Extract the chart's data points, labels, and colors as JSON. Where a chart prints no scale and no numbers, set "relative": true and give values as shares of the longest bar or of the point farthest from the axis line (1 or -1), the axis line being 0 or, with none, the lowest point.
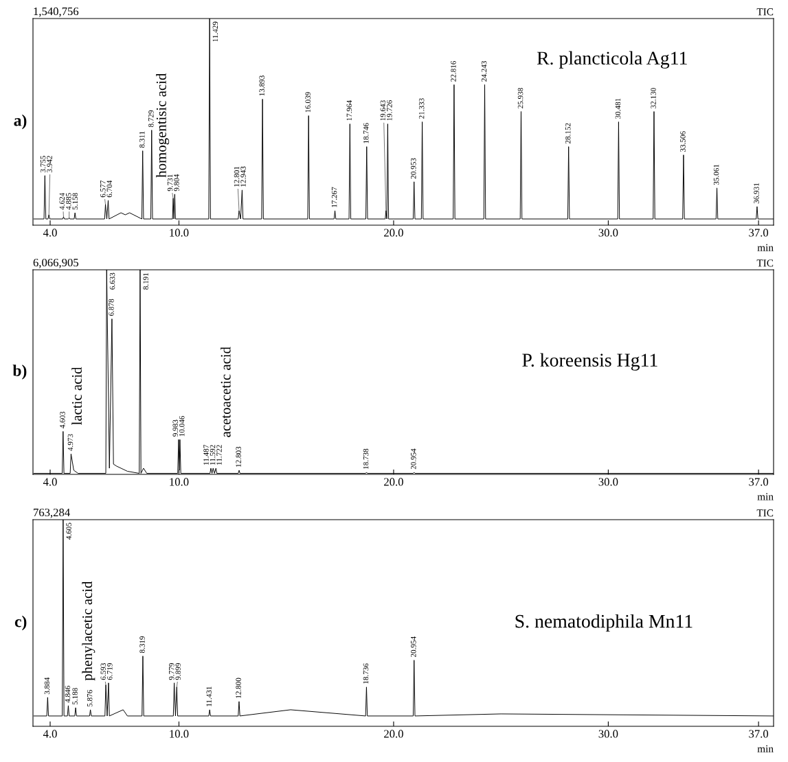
{
  "chart_data": [
    {
      "type": "line",
      "title": "a)",
      "xlabel": "min",
      "relative": true,
      "xlim": [
        3.2,
        37.7
      ],
      "xticks": [
        {
          "value": 4,
          "label": "4.0"
        },
        {
          "value": 10,
          "label": "10.0"
        },
        {
          "value": 20,
          "label": "20.0"
        },
        {
          "value": 30,
          "label": "30.0"
        },
        {
          "value": 37,
          "label": "37.0"
        }
      ],
      "series": [
        {
          "color": "#000000",
          "x": [
            3.24,
            3.715,
            3.755,
            3.8,
            3.902,
            3.942,
            3.982,
            4.584,
            4.624,
            4.664,
            4.845,
            4.885,
            4.925,
            5.118,
            5.158,
            5.198,
            6.537,
            6.577,
            6.64,
            6.704,
            6.744,
            7.3,
            7.5,
            7.7,
            8.271,
            8.311,
            8.351,
            8.689,
            8.729,
            8.769,
            9.7,
            9.731,
            9.767,
            9.804,
            9.84,
            11.389,
            11.429,
            11.469,
            12.761,
            12.801,
            12.872,
            12.943,
            12.983,
            13.853,
            13.893,
            13.933,
            15.999,
            16.039,
            16.079,
            17.227,
            17.267,
            17.307,
            17.924,
            17.964,
            18.004,
            18.706,
            18.746,
            18.786,
            19.61,
            19.643,
            19.685,
            19.726,
            19.766,
            20.913,
            20.953,
            20.993,
            21.293,
            21.333,
            21.373,
            22.776,
            22.816,
            22.856,
            24.203,
            24.243,
            24.283,
            25.898,
            25.938,
            25.978,
            28.112,
            28.152,
            28.192,
            30.441,
            30.481,
            30.521,
            32.09,
            32.13,
            32.17,
            33.466,
            33.506,
            33.546,
            35.021,
            35.061,
            35.101,
            36.891,
            36.931,
            36.971,
            37.7
          ],
          "values": [
            0.03,
            0.03,
            0.24,
            0.03,
            0.03,
            0.05,
            0.03,
            0.03,
            0.04,
            0.03,
            0.03,
            0.035,
            0.03,
            0.03,
            0.06,
            0.03,
            0.03,
            0.1,
            0.03,
            0.12,
            0.03,
            0.06,
            0.05,
            0.06,
            0.03,
            0.36,
            0.03,
            0.03,
            0.46,
            0.03,
            0.03,
            0.13,
            0.03,
            0.15,
            0.03,
            0.03,
            1.0,
            0.03,
            0.03,
            0.07,
            0.03,
            0.17,
            0.03,
            0.03,
            0.61,
            0.03,
            0.03,
            0.53,
            0.03,
            0.03,
            0.07,
            0.03,
            0.03,
            0.49,
            0.03,
            0.03,
            0.38,
            0.03,
            0.03,
            0.07,
            0.03,
            0.49,
            0.03,
            0.03,
            0.21,
            0.03,
            0.03,
            0.5,
            0.03,
            0.03,
            0.68,
            0.03,
            0.03,
            0.68,
            0.03,
            0.03,
            0.55,
            0.03,
            0.03,
            0.38,
            0.03,
            0.03,
            0.5,
            0.03,
            0.03,
            0.55,
            0.03,
            0.03,
            0.34,
            0.03,
            0.03,
            0.18,
            0.03,
            0.03,
            0.09,
            0.03,
            0.03
          ]
        }
      ],
      "annotations": [
        "1,540,756",
        "TIC",
        "R. plancticola Ag11",
        {
          "text": "3.755",
          "x": 3.755,
          "y": 0.24
        },
        {
          "text": "3.942",
          "x": 3.942,
          "y": 0.05
        },
        {
          "text": "4.624",
          "x": 4.624,
          "y": 0.04
        },
        {
          "text": "4.885",
          "x": 4.885,
          "y": 0.035
        },
        {
          "text": "5.158",
          "x": 5.158,
          "y": 0.06
        },
        {
          "text": "6.577",
          "x": 6.577,
          "y": 0.1
        },
        {
          "text": "6.704",
          "x": 6.704,
          "y": 0.12
        },
        {
          "text": "8.311",
          "x": 8.311,
          "y": 0.36
        },
        {
          "text": "8.729",
          "x": 8.729,
          "y": 0.46
        },
        {
          "text": "9.731",
          "x": 9.731,
          "y": 0.13
        },
        {
          "text": "9.804",
          "x": 9.804,
          "y": 0.15
        },
        {
          "text": "11.429",
          "x": 11.429,
          "y": 1.0
        },
        {
          "text": "12.801",
          "x": 12.801,
          "y": 0.07
        },
        {
          "text": "12.943",
          "x": 12.943,
          "y": 0.17
        },
        {
          "text": "13.893",
          "x": 13.893,
          "y": 0.61
        },
        {
          "text": "16.039",
          "x": 16.039,
          "y": 0.53
        },
        {
          "text": "17.267",
          "x": 17.267,
          "y": 0.07
        },
        {
          "text": "17.964",
          "x": 17.964,
          "y": 0.49
        },
        {
          "text": "18.746",
          "x": 18.746,
          "y": 0.38
        },
        {
          "text": "19.643",
          "x": 19.643,
          "y": 0.07
        },
        {
          "text": "19.726",
          "x": 19.726,
          "y": 0.49
        },
        {
          "text": "20.953",
          "x": 20.953,
          "y": 0.21
        },
        {
          "text": "21.333",
          "x": 21.333,
          "y": 0.5
        },
        {
          "text": "22.816",
          "x": 22.816,
          "y": 0.68
        },
        {
          "text": "24.243",
          "x": 24.243,
          "y": 0.68
        },
        {
          "text": "25.938",
          "x": 25.938,
          "y": 0.55
        },
        {
          "text": "28.152",
          "x": 28.152,
          "y": 0.38
        },
        {
          "text": "30.481",
          "x": 30.481,
          "y": 0.5
        },
        {
          "text": "32.130",
          "x": 32.13,
          "y": 0.55
        },
        {
          "text": "33.506",
          "x": 33.506,
          "y": 0.34
        },
        {
          "text": "35.061",
          "x": 35.061,
          "y": 0.18
        },
        {
          "text": "36.931",
          "x": 36.931,
          "y": 0.09
        },
        "homogentisic acid"
      ]
    },
    {
      "type": "line",
      "title": "b)",
      "xlabel": "min",
      "relative": true,
      "xlim": [
        3.2,
        37.7
      ],
      "xticks": [
        {
          "value": 4,
          "label": "4.0"
        },
        {
          "value": 10,
          "label": "10.0"
        },
        {
          "value": 20,
          "label": "20.0"
        },
        {
          "value": 30,
          "label": "30.0"
        },
        {
          "value": 37,
          "label": "37.0"
        }
      ],
      "series": [
        {
          "color": "#000000",
          "x": [
            3.24,
            4.563,
            4.603,
            4.643,
            4.933,
            4.973,
            5.1,
            5.3,
            6.593,
            6.633,
            6.76,
            6.878,
            6.95,
            7.1,
            7.6,
            8.151,
            8.191,
            8.231,
            8.35,
            8.5,
            9.943,
            9.983,
            10.015,
            10.046,
            10.086,
            11.447,
            11.487,
            11.54,
            11.592,
            11.657,
            11.722,
            11.762,
            12.763,
            12.803,
            12.843,
            18.698,
            18.738,
            18.778,
            20.914,
            20.954,
            20.994,
            37.7
          ],
          "values": [
            0.005,
            0.005,
            0.21,
            0.005,
            0.005,
            0.1,
            0.02,
            0.005,
            0.005,
            1.0,
            0.03,
            0.76,
            0.05,
            0.04,
            0.015,
            0.005,
            1.0,
            0.005,
            0.03,
            0.005,
            0.005,
            0.17,
            0.02,
            0.17,
            0.005,
            0.005,
            0.03,
            0.005,
            0.03,
            0.005,
            0.03,
            0.005,
            0.005,
            0.02,
            0.005,
            0.005,
            0.01,
            0.005,
            0.005,
            0.01,
            0.005,
            0.005
          ]
        }
      ],
      "annotations": [
        "6,066,905",
        "TIC",
        "P. koreensis Hg11",
        {
          "text": "4.603",
          "x": 4.603,
          "y": 0.21
        },
        {
          "text": "4.973",
          "x": 4.973,
          "y": 0.1
        },
        {
          "text": "6.633",
          "x": 6.633,
          "y": 1.0
        },
        {
          "text": "6.878",
          "x": 6.878,
          "y": 0.76
        },
        {
          "text": "8.191",
          "x": 8.191,
          "y": 1.0
        },
        {
          "text": "9.983",
          "x": 9.983,
          "y": 0.17
        },
        {
          "text": "10.046",
          "x": 10.046,
          "y": 0.17
        },
        {
          "text": "11.487",
          "x": 11.487,
          "y": 0.03
        },
        {
          "text": "11.592",
          "x": 11.592,
          "y": 0.03
        },
        {
          "text": "11.722",
          "x": 11.722,
          "y": 0.03
        },
        {
          "text": "12.803",
          "x": 12.803,
          "y": 0.02
        },
        {
          "text": "18.738",
          "x": 18.738,
          "y": 0.01
        },
        {
          "text": "20.954",
          "x": 20.954,
          "y": 0.01
        },
        "lactic acid",
        "acetoacetic acid"
      ]
    },
    {
      "type": "line",
      "title": "c)",
      "xlabel": "min",
      "relative": true,
      "xlim": [
        3.2,
        37.7
      ],
      "xticks": [
        {
          "value": 4,
          "label": "4.0"
        },
        {
          "value": 10,
          "label": "10.0"
        },
        {
          "value": 20,
          "label": "20.0"
        },
        {
          "value": 30,
          "label": "30.0"
        },
        {
          "value": 37,
          "label": "37.0"
        }
      ],
      "series": [
        {
          "color": "#000000",
          "x": [
            3.24,
            3.844,
            3.884,
            3.924,
            4.565,
            4.605,
            4.645,
            4.806,
            4.846,
            4.886,
            5.148,
            5.188,
            5.228,
            5.836,
            5.876,
            5.916,
            6.553,
            6.593,
            6.656,
            6.719,
            6.759,
            7.4,
            7.6,
            8.279,
            8.319,
            8.359,
            9.739,
            9.779,
            9.839,
            9.899,
            9.939,
            11.391,
            11.431,
            11.471,
            12.76,
            12.8,
            12.84,
            15.2,
            18.696,
            18.736,
            18.776,
            20.914,
            20.954,
            20.994,
            25.0,
            37.7
          ],
          "values": [
            0.05,
            0.05,
            0.14,
            0.05,
            0.05,
            1.0,
            0.05,
            0.05,
            0.1,
            0.05,
            0.05,
            0.09,
            0.05,
            0.05,
            0.08,
            0.05,
            0.05,
            0.2,
            0.05,
            0.21,
            0.05,
            0.08,
            0.05,
            0.05,
            0.34,
            0.05,
            0.05,
            0.21,
            0.05,
            0.19,
            0.05,
            0.05,
            0.08,
            0.05,
            0.05,
            0.12,
            0.05,
            0.08,
            0.05,
            0.19,
            0.05,
            0.05,
            0.32,
            0.05,
            0.06,
            0.05
          ]
        }
      ],
      "annotations": [
        "763,284",
        "TIC",
        "S. nematodiphila Mn11",
        {
          "text": "3.884",
          "x": 3.884,
          "y": 0.14
        },
        {
          "text": "4.605",
          "x": 4.605,
          "y": 1.0
        },
        {
          "text": "4.846",
          "x": 4.846,
          "y": 0.1
        },
        {
          "text": "5.188",
          "x": 5.188,
          "y": 0.09
        },
        {
          "text": "5.876",
          "x": 5.876,
          "y": 0.08
        },
        {
          "text": "6.593",
          "x": 6.593,
          "y": 0.2
        },
        {
          "text": "6.719",
          "x": 6.719,
          "y": 0.21
        },
        {
          "text": "8.319",
          "x": 8.319,
          "y": 0.34
        },
        {
          "text": "9.779",
          "x": 9.779,
          "y": 0.21
        },
        {
          "text": "9.899",
          "x": 9.899,
          "y": 0.19
        },
        {
          "text": "11.431",
          "x": 11.431,
          "y": 0.08
        },
        {
          "text": "12.800",
          "x": 12.8,
          "y": 0.12
        },
        {
          "text": "18.736",
          "x": 18.736,
          "y": 0.19
        },
        {
          "text": "20.954",
          "x": 20.954,
          "y": 0.32
        },
        "phenylacetic acid"
      ]
    }
  ]
}
